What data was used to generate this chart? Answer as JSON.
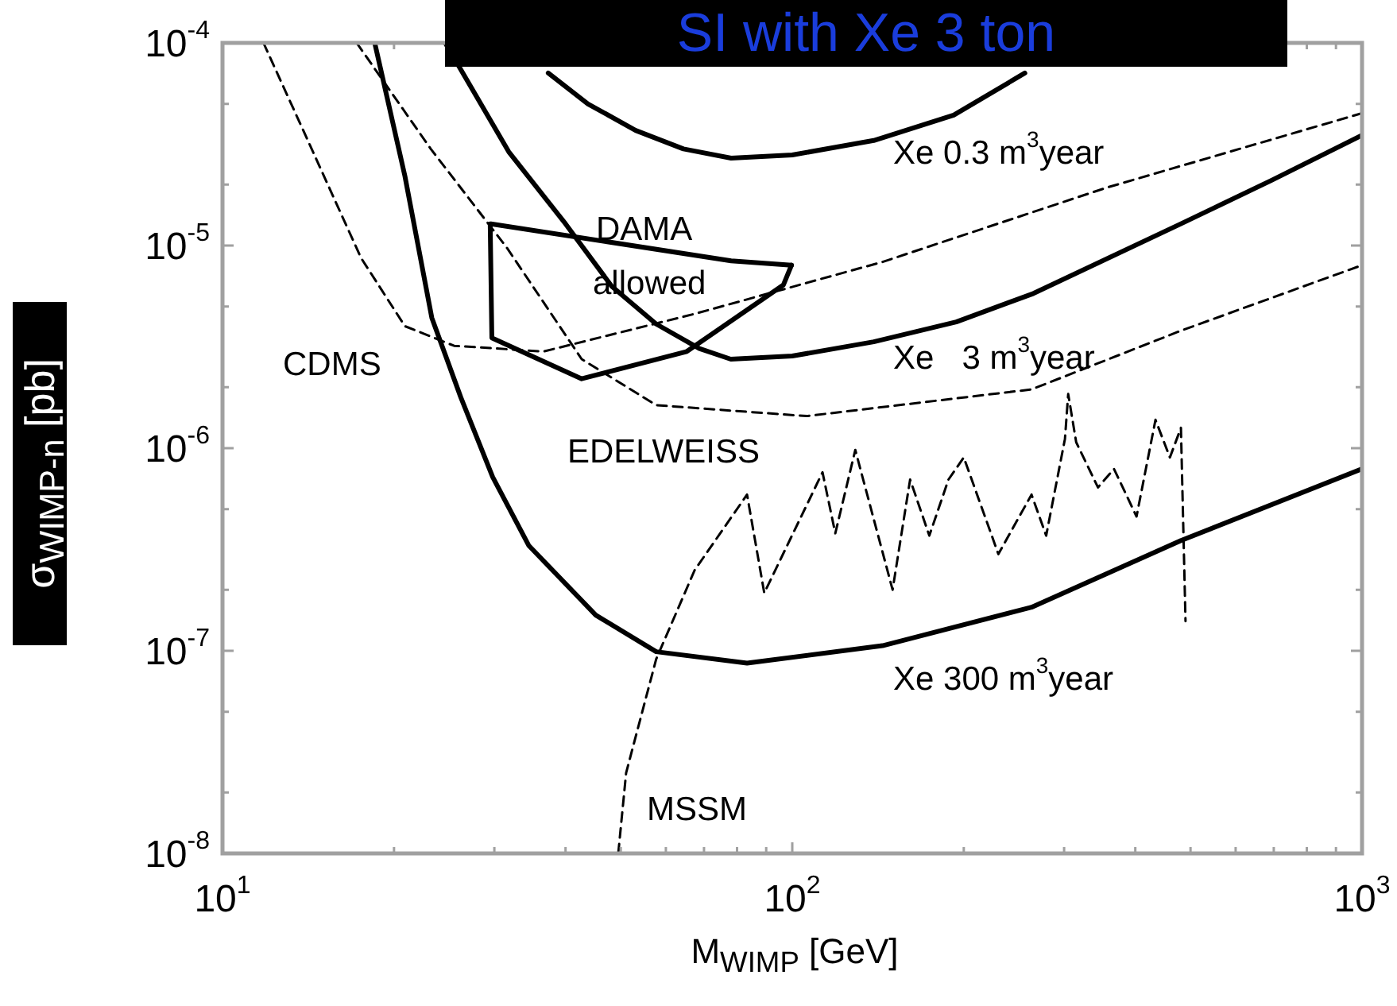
{
  "chart_data": {
    "type": "line",
    "title": "SI with Xe 3 ton",
    "xlabel": "M$_{WIMP}$ [GeV]",
    "ylabel": "σ$_{WIMP-n}$ [pb]",
    "log": "xy",
    "grid": false,
    "legend": false,
    "marker": "none",
    "xlim": [
      10,
      1000
    ],
    "ylim": [
      1e-08,
      0.0001
    ],
    "xticks": [
      {
        "value": 10,
        "label": "10$^{1}$"
      },
      {
        "value": 20,
        "label": null
      },
      {
        "value": 30,
        "label": null
      },
      {
        "value": 40,
        "label": null
      },
      {
        "value": 50,
        "label": null
      },
      {
        "value": 60,
        "label": null
      },
      {
        "value": 70,
        "label": null
      },
      {
        "value": 80,
        "label": null
      },
      {
        "value": 90,
        "label": null
      },
      {
        "value": 100,
        "label": "10$^{2}$"
      },
      {
        "value": 200,
        "label": null
      },
      {
        "value": 300,
        "label": null
      },
      {
        "value": 400,
        "label": null
      },
      {
        "value": 500,
        "label": null
      },
      {
        "value": 600,
        "label": null
      },
      {
        "value": 700,
        "label": null
      },
      {
        "value": 800,
        "label": null
      },
      {
        "value": 900,
        "label": null
      },
      {
        "value": 1000,
        "label": "10$^{3}$"
      }
    ],
    "yticks": [
      {
        "value": 1e-08,
        "label": "10$^{-8}$"
      },
      {
        "value": 2e-08,
        "label": null
      },
      {
        "value": 5e-08,
        "label": null
      },
      {
        "value": 1e-07,
        "label": "10$^{-7}$"
      },
      {
        "value": 2e-07,
        "label": null
      },
      {
        "value": 5e-07,
        "label": null
      },
      {
        "value": 1e-06,
        "label": "10$^{-6}$"
      },
      {
        "value": 2e-06,
        "label": null
      },
      {
        "value": 5e-06,
        "label": null
      },
      {
        "value": 1e-05,
        "label": "10$^{-5}$"
      },
      {
        "value": 2e-05,
        "label": null
      },
      {
        "value": 5e-05,
        "label": null
      },
      {
        "value": 0.0001,
        "label": "10$^{-4}$"
      }
    ],
    "series": [
      {
        "name": "Xe 0.3 m$^{3}$year",
        "type": "line",
        "color": "#000000",
        "line_style": "solid",
        "x": [
          37.3,
          43.8,
          53.1,
          64.4,
          78.1,
          100,
          139,
          192,
          256
        ],
        "values": [
          7.1e-05,
          5e-05,
          3.7e-05,
          3e-05,
          2.7e-05,
          2.8e-05,
          3.3e-05,
          4.4e-05,
          7.1e-05
        ]
      },
      {
        "name": "Xe   3 m$^{3}$year",
        "type": "line",
        "color": "#000000",
        "line_style": "solid",
        "x": [
          24.6,
          31.8,
          40.0,
          48.2,
          57.7,
          68.7,
          78,
          100,
          139,
          194,
          265,
          481,
          694,
          1000
        ],
        "values": [
          0.0001,
          2.9e-05,
          1.28e-05,
          6.3e-06,
          4.1e-06,
          3.1e-06,
          2.75e-06,
          2.85e-06,
          3.35e-06,
          4.2e-06,
          5.8e-06,
          1.28e-05,
          2.1e-05,
          3.5e-05
        ]
      },
      {
        "name": "Xe 300 m$^{3}$year",
        "type": "line",
        "color": "#000000",
        "line_style": "solid",
        "x": [
          18.5,
          20.9,
          23.3,
          26.2,
          29.8,
          34.5,
          45.2,
          57.7,
          83.3,
          144,
          263,
          481,
          1000
        ],
        "values": [
          0.0001,
          2.2e-05,
          4.4e-06,
          1.78e-06,
          7.2e-07,
          3.3e-07,
          1.5e-07,
          9.9e-08,
          8.7e-08,
          1.06e-07,
          1.64e-07,
          3.5e-07,
          7.9e-07
        ]
      },
      {
        "name": "CDMS",
        "type": "line",
        "color": "#000000",
        "line_style": "dashed",
        "x": [
          11.8,
          13.8,
          17.5,
          20.9,
          25.5,
          36.6,
          67.4,
          144,
          356,
          1000
        ],
        "values": [
          0.0001,
          3.8e-05,
          8.7e-06,
          4e-06,
          3.2e-06,
          3e-06,
          4.6e-06,
          8.3e-06,
          1.93e-05,
          4.5e-05
        ]
      },
      {
        "name": "EDELWEISS",
        "type": "line",
        "color": "#000000",
        "line_style": "dashed",
        "x": [
          17.2,
          23.2,
          31.6,
          42.7,
          57.7,
          106,
          263,
          481,
          1000
        ],
        "values": [
          0.0001,
          3e-05,
          9.7e-06,
          2.75e-06,
          1.63e-06,
          1.44e-06,
          1.95e-06,
          3.8e-06,
          8e-06
        ]
      },
      {
        "name": "MSSM",
        "type": "line",
        "color": "#000000",
        "line_style": "dashed",
        "x": [
          49.5,
          51.1,
          57.7,
          67.4,
          83.3,
          89.3,
          113,
          119,
          129,
          150,
          161,
          174,
          188,
          200,
          230,
          263,
          279,
          301,
          305,
          315,
          344,
          367,
          402,
          434,
          460,
          481,
          490
        ],
        "values": [
          1e-08,
          2.5e-08,
          9.1e-08,
          2.5e-07,
          5.9e-07,
          1.93e-07,
          7.6e-07,
          3.8e-07,
          9.8e-07,
          2e-07,
          7e-07,
          3.7e-07,
          7e-07,
          9e-07,
          3e-07,
          5.9e-07,
          3.7e-07,
          1.11e-06,
          1.85e-06,
          1.07e-06,
          6.4e-07,
          7.9e-07,
          4.6e-07,
          1.38e-06,
          9e-07,
          1.26e-06,
          1.4e-07
        ]
      },
      {
        "name": "DAMA allowed",
        "type": "line",
        "color": "#000000",
        "line_style": "solid",
        "x": [
          29.6,
          78.1,
          99.7
        ],
        "values": [
          1.28e-05,
          8.4e-06,
          8e-06
        ]
      },
      {
        "type": "line",
        "color": "#000000",
        "line_style": "solid",
        "x": [
          29.5,
          29.7,
          42.7,
          65.3,
          96.5,
          99.7
        ],
        "values": [
          1.28e-05,
          3.5e-06,
          2.2e-06,
          3e-06,
          6.4e-06,
          8e-06
        ]
      }
    ]
  }
}
